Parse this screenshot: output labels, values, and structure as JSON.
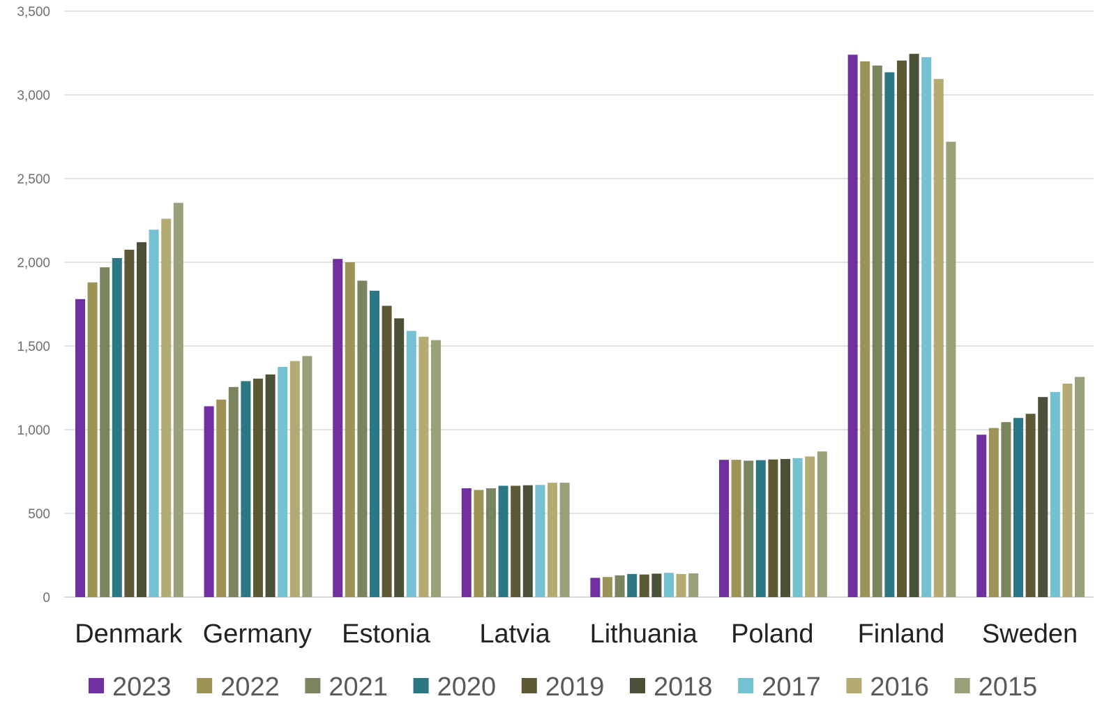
{
  "chart_data": {
    "type": "bar",
    "title": "",
    "xlabel": "",
    "ylabel": "",
    "ylim": [
      0,
      3500
    ],
    "yticks": [
      0,
      500,
      1000,
      1500,
      2000,
      2500,
      3000,
      3500
    ],
    "ytick_labels": [
      "0",
      "500",
      "1,000",
      "1,500",
      "2,000",
      "2,500",
      "3,000",
      "3,500"
    ],
    "grid": true,
    "legend_position": "bottom",
    "categories": [
      "Denmark",
      "Germany",
      "Estonia",
      "Latvia",
      "Lithuania",
      "Poland",
      "Finland",
      "Sweden"
    ],
    "series": [
      {
        "name": "2023",
        "color": "#7030A0",
        "values": [
          1780,
          1140,
          2020,
          650,
          115,
          820,
          3240,
          970
        ]
      },
      {
        "name": "2022",
        "color": "#9C9457",
        "values": [
          1880,
          1180,
          2000,
          640,
          120,
          820,
          3200,
          1010
        ]
      },
      {
        "name": "2021",
        "color": "#7A845E",
        "values": [
          1970,
          1255,
          1890,
          650,
          130,
          815,
          3175,
          1045
        ]
      },
      {
        "name": "2020",
        "color": "#2B7784",
        "values": [
          2025,
          1290,
          1830,
          665,
          138,
          818,
          3135,
          1070
        ]
      },
      {
        "name": "2019",
        "color": "#5D5934",
        "values": [
          2075,
          1305,
          1740,
          665,
          135,
          822,
          3205,
          1095
        ]
      },
      {
        "name": "2018",
        "color": "#4A5138",
        "values": [
          2120,
          1330,
          1665,
          668,
          140,
          825,
          3245,
          1195
        ]
      },
      {
        "name": "2017",
        "color": "#74C1D1",
        "values": [
          2195,
          1375,
          1590,
          670,
          145,
          830,
          3225,
          1225
        ]
      },
      {
        "name": "2016",
        "color": "#B4AB73",
        "values": [
          2260,
          1410,
          1555,
          683,
          138,
          840,
          3095,
          1275
        ]
      },
      {
        "name": "2015",
        "color": "#98A17A",
        "values": [
          2355,
          1440,
          1535,
          683,
          142,
          870,
          2720,
          1315
        ]
      }
    ]
  }
}
